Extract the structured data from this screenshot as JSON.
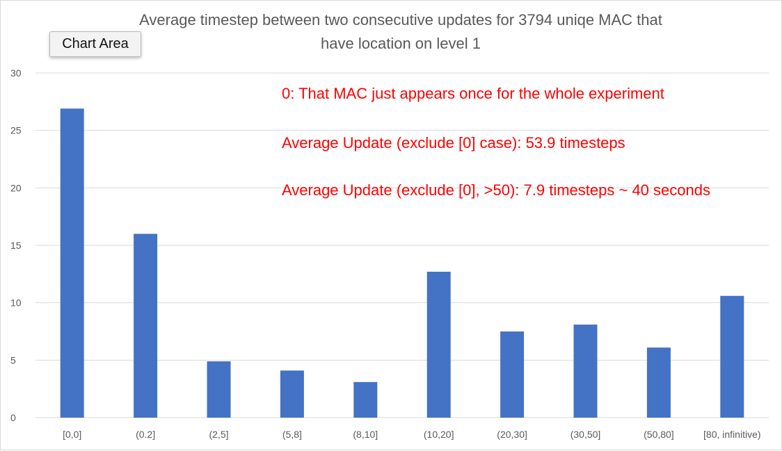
{
  "chart_data": {
    "type": "bar",
    "title_lines": [
      "Average timestep between two consecutive updates for 3794 uniqe MAC that",
      "have location on level 1"
    ],
    "categories": [
      "[0,0]",
      "(0.2]",
      "(2,5]",
      "(5,8]",
      "(8,10]",
      "(10,20]",
      "(20,30]",
      "(30,50]",
      "(50,80]",
      "[80, infinitive)"
    ],
    "series": [
      {
        "values": [
          26.9,
          16.0,
          4.9,
          4.1,
          3.1,
          12.7,
          7.5,
          8.1,
          6.1,
          10.6
        ]
      }
    ],
    "ylim": [
      0,
      30
    ],
    "yticks": [
      0,
      5,
      10,
      15,
      20,
      25,
      30
    ],
    "grid": true,
    "bar_color": "#4472c4",
    "annotations": [
      "0: That MAC just appears once for the whole experiment",
      "Average Update (exclude [0] case): 53.9 timesteps",
      "Average Update (exclude [0], >50): 7.9 timesteps ~ 40 seconds"
    ],
    "annotation_color": "#ff0000"
  },
  "tooltip": {
    "label": "Chart Area"
  }
}
